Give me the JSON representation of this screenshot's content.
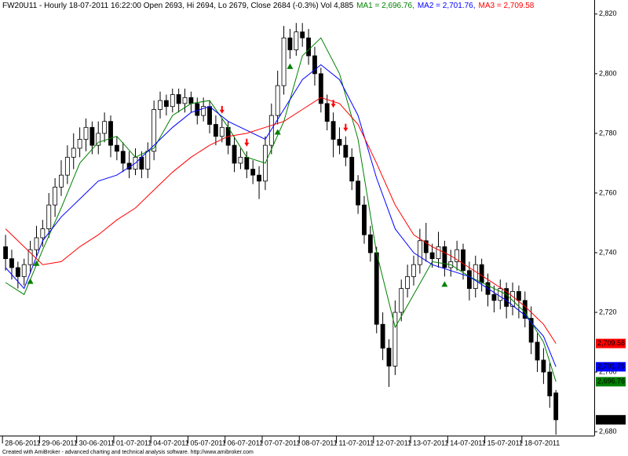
{
  "chart_data": {
    "type": "candlestick",
    "header": "FW20U11 - Hourly 18-07-2011 16:22:00 Open 2693, Hi 2694, Lo 2679, Close 2684 (-0.3%) Vol 4,885",
    "footer": "Created with AmiBroker - advanced charting and technical analysis software. http://www.amibroker.com",
    "xlim": [
      -0.9,
      95.2
    ],
    "ylim": [
      2678.7,
      2824.7
    ],
    "yticks": [
      {
        "value": 2680,
        "label": "2,680"
      },
      {
        "value": 2700,
        "label": "2,700"
      },
      {
        "value": 2720,
        "label": "2,720"
      },
      {
        "value": 2740,
        "label": "2,740"
      },
      {
        "value": 2760,
        "label": "2,760"
      },
      {
        "value": 2780,
        "label": "2,780"
      },
      {
        "value": 2800,
        "label": "2,800"
      },
      {
        "value": 2820,
        "label": "2,820"
      }
    ],
    "xticks": [
      {
        "value": 0,
        "label": "28-06-2011"
      },
      {
        "value": 6,
        "label": "29-06-2011"
      },
      {
        "value": 12,
        "label": "30-06-2011"
      },
      {
        "value": 18,
        "label": "01-07-2011"
      },
      {
        "value": 24,
        "label": "04-07-2011"
      },
      {
        "value": 30,
        "label": "05-07-2011"
      },
      {
        "value": 36,
        "label": "06-07-2011"
      },
      {
        "value": 42,
        "label": "07-07-2011"
      },
      {
        "value": 48,
        "label": "08-07-2011"
      },
      {
        "value": 54,
        "label": "11-07-2011"
      },
      {
        "value": 60,
        "label": "12-07-2011"
      },
      {
        "value": 66,
        "label": "13-07-2011"
      },
      {
        "value": 72,
        "label": "14-07-2011"
      },
      {
        "value": 78,
        "label": "15-07-2011"
      },
      {
        "value": 84,
        "label": "18-07-2011"
      }
    ],
    "open": [
      2742,
      2738,
      2735,
      2732,
      2736,
      2741,
      2745,
      2748,
      2756,
      2762,
      2766,
      2772,
      2775,
      2778,
      2782,
      2776,
      2780,
      2784,
      2776,
      2774,
      2770,
      2768,
      2772,
      2768,
      2774,
      2788,
      2791,
      2789,
      2793,
      2790,
      2792,
      2790,
      2786,
      2789,
      2783,
      2779,
      2782,
      2776,
      2770,
      2772,
      2768,
      2766,
      2764,
      2776,
      2786,
      2796,
      2812,
      2808,
      2814,
      2812,
      2806,
      2800,
      2790,
      2784,
      2778,
      2776,
      2772,
      2764,
      2756,
      2746,
      2740,
      2716,
      2708,
      2702,
      2720,
      2728,
      2732,
      2736,
      2744,
      2740,
      2738,
      2742,
      2735,
      2737,
      2741,
      2734,
      2728,
      2736,
      2730,
      2726,
      2724,
      2728,
      2722,
      2727,
      2724,
      2718,
      2710,
      2704,
      2700,
      2693
    ],
    "high": [
      2746,
      2741,
      2737,
      2738,
      2744,
      2749,
      2751,
      2760,
      2765,
      2771,
      2776,
      2780,
      2782,
      2785,
      2784,
      2784,
      2787,
      2786,
      2779,
      2777,
      2774,
      2775,
      2774,
      2777,
      2791,
      2794,
      2793,
      2795,
      2795,
      2795,
      2794,
      2792,
      2792,
      2791,
      2786,
      2785,
      2784,
      2779,
      2775,
      2774,
      2771,
      2769,
      2779,
      2790,
      2801,
      2816,
      2815,
      2817,
      2817,
      2815,
      2809,
      2802,
      2793,
      2787,
      2782,
      2779,
      2775,
      2766,
      2759,
      2749,
      2742,
      2720,
      2711,
      2724,
      2731,
      2736,
      2739,
      2748,
      2750,
      2743,
      2747,
      2744,
      2741,
      2744,
      2743,
      2737,
      2739,
      2738,
      2733,
      2729,
      2731,
      2730,
      2730,
      2729,
      2727,
      2722,
      2713,
      2708,
      2703,
      2694
    ],
    "low": [
      2734,
      2731,
      2728,
      2729,
      2733,
      2739,
      2742,
      2745,
      2752,
      2759,
      2763,
      2768,
      2772,
      2774,
      2773,
      2773,
      2777,
      2772,
      2771,
      2767,
      2765,
      2766,
      2765,
      2765,
      2771,
      2785,
      2786,
      2787,
      2787,
      2787,
      2787,
      2783,
      2784,
      2780,
      2776,
      2777,
      2773,
      2767,
      2768,
      2765,
      2763,
      2758,
      2761,
      2773,
      2783,
      2793,
      2805,
      2806,
      2809,
      2803,
      2796,
      2787,
      2781,
      2772,
      2773,
      2769,
      2761,
      2753,
      2743,
      2737,
      2713,
      2704,
      2695,
      2699,
      2717,
      2725,
      2729,
      2733,
      2737,
      2735,
      2735,
      2732,
      2732,
      2734,
      2731,
      2724,
      2725,
      2727,
      2722,
      2720,
      2721,
      2718,
      2719,
      2718,
      2715,
      2706,
      2700,
      2696,
      2688,
      2679
    ],
    "close": [
      2738,
      2735,
      2732,
      2736,
      2741,
      2745,
      2748,
      2756,
      2762,
      2766,
      2772,
      2775,
      2778,
      2782,
      2776,
      2780,
      2784,
      2776,
      2774,
      2770,
      2768,
      2772,
      2768,
      2774,
      2788,
      2791,
      2789,
      2793,
      2790,
      2792,
      2790,
      2786,
      2789,
      2783,
      2779,
      2782,
      2776,
      2770,
      2772,
      2768,
      2766,
      2764,
      2776,
      2786,
      2796,
      2812,
      2808,
      2814,
      2812,
      2806,
      2800,
      2790,
      2784,
      2778,
      2776,
      2772,
      2764,
      2756,
      2746,
      2740,
      2716,
      2708,
      2702,
      2720,
      2728,
      2732,
      2736,
      2744,
      2740,
      2738,
      2742,
      2735,
      2737,
      2741,
      2734,
      2728,
      2736,
      2730,
      2726,
      2724,
      2728,
      2722,
      2727,
      2724,
      2718,
      2710,
      2704,
      2700,
      2692,
      2684
    ],
    "close_label": "2,684",
    "buy_signals": [
      4,
      5,
      44,
      46,
      71
    ],
    "sell_signals": [
      35,
      39,
      53,
      55
    ],
    "series": [
      {
        "name": "MA1",
        "label": "MA1 = 2,696.76,",
        "color": "#008000",
        "last_label": "2,696.76",
        "x": [
          0,
          3,
          6,
          9,
          12,
          15,
          18,
          21,
          24,
          27,
          30,
          33,
          36,
          39,
          42,
          45,
          48,
          51,
          54,
          57,
          60,
          63,
          66,
          69,
          72,
          75,
          78,
          81,
          84,
          87,
          89
        ],
        "values": [
          2730,
          2726,
          2741,
          2755,
          2770,
          2777,
          2779,
          2772,
          2775,
          2786,
          2790,
          2791,
          2782,
          2772,
          2770,
          2784,
          2806,
          2812,
          2800,
          2778,
          2740,
          2715,
          2726,
          2737,
          2736,
          2732,
          2729,
          2726,
          2720,
          2710,
          2696.76
        ]
      },
      {
        "name": "MA2",
        "label": "MA2 = 2,701.76,",
        "color": "#0000ff",
        "last_label": "2,701.76",
        "x": [
          0,
          3,
          6,
          9,
          12,
          15,
          18,
          21,
          24,
          27,
          30,
          33,
          36,
          39,
          42,
          45,
          48,
          51,
          54,
          57,
          60,
          63,
          66,
          69,
          72,
          75,
          78,
          81,
          84,
          87,
          89
        ],
        "values": [
          2735,
          2728,
          2744,
          2752,
          2758,
          2764,
          2766,
          2770,
          2776,
          2782,
          2787,
          2789,
          2784,
          2781,
          2778,
          2788,
          2798,
          2803,
          2798,
          2786,
          2765,
          2748,
          2740,
          2736,
          2734,
          2732,
          2728,
          2724,
          2719,
          2712,
          2701.76
        ]
      },
      {
        "name": "MA3",
        "label": "MA3 = 2,709.58",
        "color": "#ff0000",
        "last_label": "2,709.58",
        "x": [
          0,
          3,
          6,
          9,
          12,
          15,
          18,
          21,
          24,
          27,
          30,
          33,
          36,
          39,
          42,
          45,
          48,
          51,
          54,
          57,
          60,
          63,
          66,
          69,
          72,
          75,
          78,
          81,
          84,
          87,
          89
        ],
        "values": [
          2748,
          2742,
          2736,
          2737,
          2742,
          2746,
          2751,
          2755,
          2761,
          2767,
          2772,
          2776,
          2779,
          2780,
          2782,
          2784,
          2788,
          2792,
          2790,
          2783,
          2770,
          2756,
          2746,
          2742,
          2739,
          2735,
          2731,
          2727,
          2722,
          2716,
          2709.58
        ]
      }
    ]
  }
}
